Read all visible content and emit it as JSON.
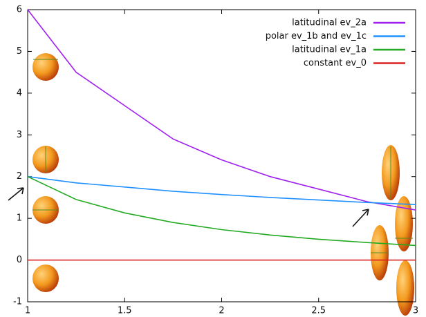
{
  "chart_data": {
    "type": "line",
    "x": [
      1,
      1.25,
      1.5,
      1.75,
      2,
      2.25,
      2.5,
      2.75,
      3
    ],
    "series": [
      {
        "name": "latitudinal ev_2a",
        "color": "#a020f0",
        "values": [
          6,
          4.5,
          3.7,
          2.9,
          2.4,
          2.0,
          1.7,
          1.4,
          1.2
        ]
      },
      {
        "name": "polar ev_1b and ev_1c",
        "color": "#1e90ff",
        "values": [
          2,
          1.85,
          1.75,
          1.65,
          1.57,
          1.5,
          1.44,
          1.38,
          1.33
        ]
      },
      {
        "name": "latitudinal ev_1a",
        "color": "#22aa22",
        "values": [
          2,
          1.45,
          1.13,
          0.9,
          0.73,
          0.6,
          0.5,
          0.42,
          0.35
        ]
      },
      {
        "name": "constant ev_0",
        "color": "#dd2222",
        "values": [
          0,
          0,
          0,
          0,
          0,
          0,
          0,
          0,
          0
        ]
      }
    ],
    "xlim": [
      1,
      3
    ],
    "ylim": [
      -1,
      6
    ],
    "xticks": [
      1,
      1.5,
      2,
      2.5,
      3
    ],
    "yticks": [
      -1,
      0,
      1,
      2,
      3,
      4,
      5,
      6
    ],
    "legend": "top-right"
  }
}
